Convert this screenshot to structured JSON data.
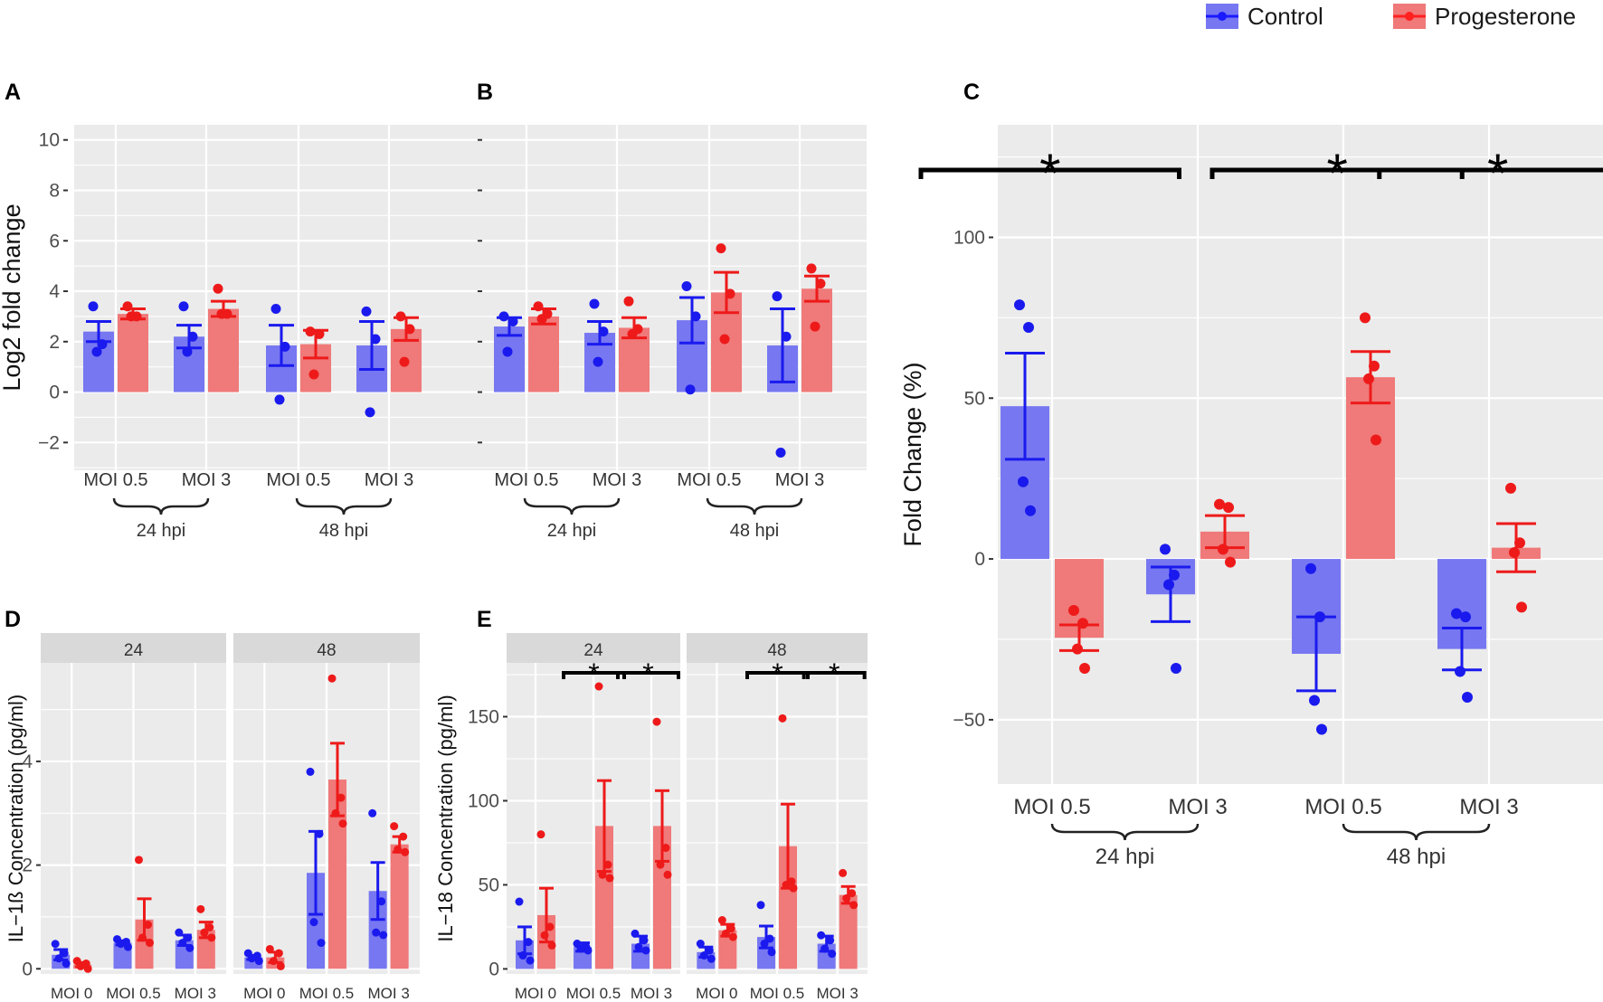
{
  "legend": {
    "items": [
      {
        "label": "Control",
        "color": "#1a1aff"
      },
      {
        "label": "Progesterone",
        "color": "#ff2020"
      }
    ]
  },
  "colors": {
    "control_fill": "#7777f2",
    "progesterone_fill": "#f07979",
    "control_line": "#1a1aee",
    "progesterone_line": "#ee1a1a",
    "panel_bg": "#ebebeb",
    "strip_bg": "#d9d9d9",
    "grid": "#ffffff"
  },
  "chart_data": [
    {
      "id": "A",
      "panel_label": "A",
      "type": "bar",
      "ylabel": "Log2 fold change",
      "show_tick_labels": true,
      "ylim": [
        -3.1,
        10.6
      ],
      "yticks": [
        -2,
        0,
        2,
        4,
        6,
        8,
        10
      ],
      "tick_labels": [
        "−2",
        "0",
        "2",
        "4",
        "6",
        "8",
        "10"
      ],
      "categories": [
        "MOI 0.5",
        "MOI 3",
        "MOI 0.5",
        "MOI 3"
      ],
      "group_labels": [
        "24 hpi",
        "48 hpi"
      ],
      "series": [
        {
          "name": "Control",
          "values": [
            2.4,
            2.2,
            1.85,
            1.85
          ],
          "errors": [
            0.4,
            0.45,
            0.8,
            0.95
          ],
          "points": [
            [
              3.4,
              1.9,
              1.6
            ],
            [
              3.4,
              2.2,
              1.6
            ],
            [
              3.3,
              1.8,
              -0.3
            ],
            [
              3.2,
              2.1,
              -0.8
            ]
          ]
        },
        {
          "name": "Progesterone",
          "values": [
            3.1,
            3.3,
            1.9,
            2.5
          ],
          "errors": [
            0.2,
            0.3,
            0.55,
            0.45
          ],
          "points": [
            [
              3.4,
              3.0,
              3.0
            ],
            [
              4.1,
              3.1,
              3.1
            ],
            [
              2.4,
              2.3,
              0.7
            ],
            [
              3.0,
              2.5,
              1.2
            ]
          ]
        }
      ]
    },
    {
      "id": "B",
      "panel_label": "B",
      "type": "bar",
      "ylabel": "",
      "show_tick_labels": false,
      "ylim": [
        -3.1,
        10.6
      ],
      "yticks": [
        -2,
        0,
        2,
        4,
        6,
        8,
        10
      ],
      "tick_labels": [],
      "categories": [
        "MOI 0.5",
        "MOI 3",
        "MOI 0.5",
        "MOI 3"
      ],
      "group_labels": [
        "24 hpi",
        "48 hpi"
      ],
      "series": [
        {
          "name": "Control",
          "values": [
            2.6,
            2.35,
            2.85,
            1.85
          ],
          "errors": [
            0.35,
            0.45,
            0.9,
            1.45
          ],
          "points": [
            [
              3.0,
              2.8,
              1.6
            ],
            [
              3.5,
              2.4,
              1.2
            ],
            [
              4.2,
              3.0,
              0.1
            ],
            [
              3.8,
              2.2,
              -2.4
            ]
          ]
        },
        {
          "name": "Progesterone",
          "values": [
            3.0,
            2.55,
            3.95,
            4.1
          ],
          "errors": [
            0.3,
            0.4,
            0.8,
            0.5
          ],
          "points": [
            [
              3.4,
              3.1,
              2.9
            ],
            [
              3.6,
              2.5,
              2.3
            ],
            [
              5.7,
              3.9,
              2.1
            ],
            [
              4.9,
              4.3,
              2.6
            ]
          ]
        }
      ]
    },
    {
      "id": "C",
      "panel_label": "C",
      "type": "bar",
      "ylabel": "Fold Change (%)",
      "show_tick_labels": true,
      "ylim": [
        -70,
        135
      ],
      "yticks": [
        -50,
        0,
        50,
        100
      ],
      "tick_labels": [
        "−50",
        "0",
        "50",
        "100"
      ],
      "categories": [
        "MOI 0.5",
        "MOI 3",
        "MOI 0.5",
        "MOI 3"
      ],
      "group_labels": [
        "24 hpi",
        "48 hpi"
      ],
      "significance": [
        {
          "from": 0,
          "to": 1,
          "label": "*"
        },
        {
          "from": 2,
          "to": 3,
          "label": "*"
        },
        {
          "from": 3,
          "to": 4,
          "label": "*"
        }
      ],
      "series": [
        {
          "name": "Control",
          "values": [
            47.5,
            -11,
            -29.5,
            -28
          ],
          "errors": [
            16.5,
            8.5,
            11.5,
            6.5
          ],
          "points": [
            [
              79,
              72,
              24,
              15
            ],
            [
              3,
              -5,
              -8,
              -34
            ],
            [
              -3,
              -18,
              -44,
              -53
            ],
            [
              -17,
              -18,
              -35,
              -43
            ]
          ]
        },
        {
          "name": "Progesterone",
          "values": [
            -24.5,
            8.5,
            56.5,
            3.5
          ],
          "errors": [
            4,
            5,
            8,
            7.5
          ],
          "points": [
            [
              -16,
              -20,
              -28,
              -34
            ],
            [
              17,
              16,
              3,
              -1
            ],
            [
              75,
              60,
              56,
              37
            ],
            [
              22,
              5,
              2,
              -15
            ]
          ]
        }
      ]
    },
    {
      "id": "D",
      "panel_label": "D",
      "type": "bar",
      "ylabel": "IL−1ß Concentration (pg/ml)",
      "show_tick_labels": true,
      "ylim": [
        -0.1,
        5.9
      ],
      "yticks": [
        0,
        2,
        4
      ],
      "tick_labels": [
        "0",
        "2",
        "4"
      ],
      "facets": [
        "24",
        "48"
      ],
      "categories": [
        "MOI 0",
        "MOI 0.5",
        "MOI 3"
      ],
      "series": [
        {
          "name": "Control",
          "values": [
            [
              0.27,
              0.5,
              0.55
            ],
            [
              0.22,
              1.85,
              1.5
            ]
          ],
          "errors": [
            [
              0.1,
              0.04,
              0.1
            ],
            [
              0.04,
              0.8,
              0.55
            ]
          ],
          "points": [
            [
              [
                0.48,
                0.3,
                0.2,
                0.1
              ],
              [
                0.57,
                0.52,
                0.48,
                0.42
              ],
              [
                0.7,
                0.6,
                0.5,
                0.4
              ]
            ],
            [
              [
                0.3,
                0.25,
                0.2,
                0.15
              ],
              [
                3.8,
                2.6,
                0.9,
                0.5
              ],
              [
                3.0,
                1.3,
                0.7,
                0.65
              ]
            ]
          ]
        },
        {
          "name": "Progesterone",
          "values": [
            [
              0.08,
              0.95,
              0.75
            ],
            [
              0.22,
              3.65,
              2.4
            ]
          ],
          "errors": [
            [
              0.04,
              0.4,
              0.15
            ],
            [
              0.1,
              0.7,
              0.15
            ]
          ],
          "points": [
            [
              [
                0.15,
                0.1,
                0.05,
                0.0
              ],
              [
                2.1,
                0.85,
                0.6,
                0.5
              ],
              [
                1.15,
                0.8,
                0.7,
                0.6
              ]
            ],
            [
              [
                0.38,
                0.3,
                0.15,
                0.05
              ],
              [
                5.6,
                3.3,
                3.0,
                2.8
              ],
              [
                2.75,
                2.55,
                2.3,
                2.25
              ]
            ]
          ]
        }
      ]
    },
    {
      "id": "E",
      "panel_label": "E",
      "type": "bar",
      "ylabel": "IL−18 Concentration (pg/ml)",
      "show_tick_labels": true,
      "ylim": [
        -3,
        182
      ],
      "yticks": [
        0,
        50,
        100,
        150
      ],
      "tick_labels": [
        "0",
        "50",
        "100",
        "150"
      ],
      "facets": [
        "24",
        "48"
      ],
      "categories": [
        "MOI 0",
        "MOI 0.5",
        "MOI 3"
      ],
      "significance": [
        {
          "from": 1,
          "to": 2,
          "label": "*"
        },
        {
          "from": 2,
          "to": 3,
          "label": "*"
        }
      ],
      "series": [
        {
          "name": "Control",
          "values": [
            [
              17,
              13,
              15
            ],
            [
              10,
              19,
              15
            ]
          ],
          "errors": [
            [
              8,
              2.5,
              4.5
            ],
            [
              3,
              6.5,
              4.5
            ]
          ],
          "points": [
            [
              [
                40,
                16,
                8,
                5
              ],
              [
                15,
                13,
                12,
                11
              ],
              [
                21,
                17,
                13,
                11
              ]
            ],
            [
              [
                15,
                11,
                8,
                6
              ],
              [
                38,
                18,
                15,
                10
              ],
              [
                20,
                17,
                12,
                9
              ]
            ]
          ]
        },
        {
          "name": "Progesterone",
          "values": [
            [
              32,
              85,
              85
            ],
            [
              23,
              73,
              44
            ]
          ],
          "errors": [
            [
              16,
              27,
              21
            ],
            [
              3.5,
              25,
              5
            ]
          ],
          "points": [
            [
              [
                80,
                25,
                20,
                14
              ],
              [
                168,
                62,
                56,
                54
              ],
              [
                147,
                72,
                62,
                56
              ]
            ],
            [
              [
                29,
                24,
                21,
                19
              ],
              [
                149,
                52,
                50,
                48
              ],
              [
                57,
                45,
                42,
                38
              ]
            ]
          ]
        }
      ]
    }
  ]
}
